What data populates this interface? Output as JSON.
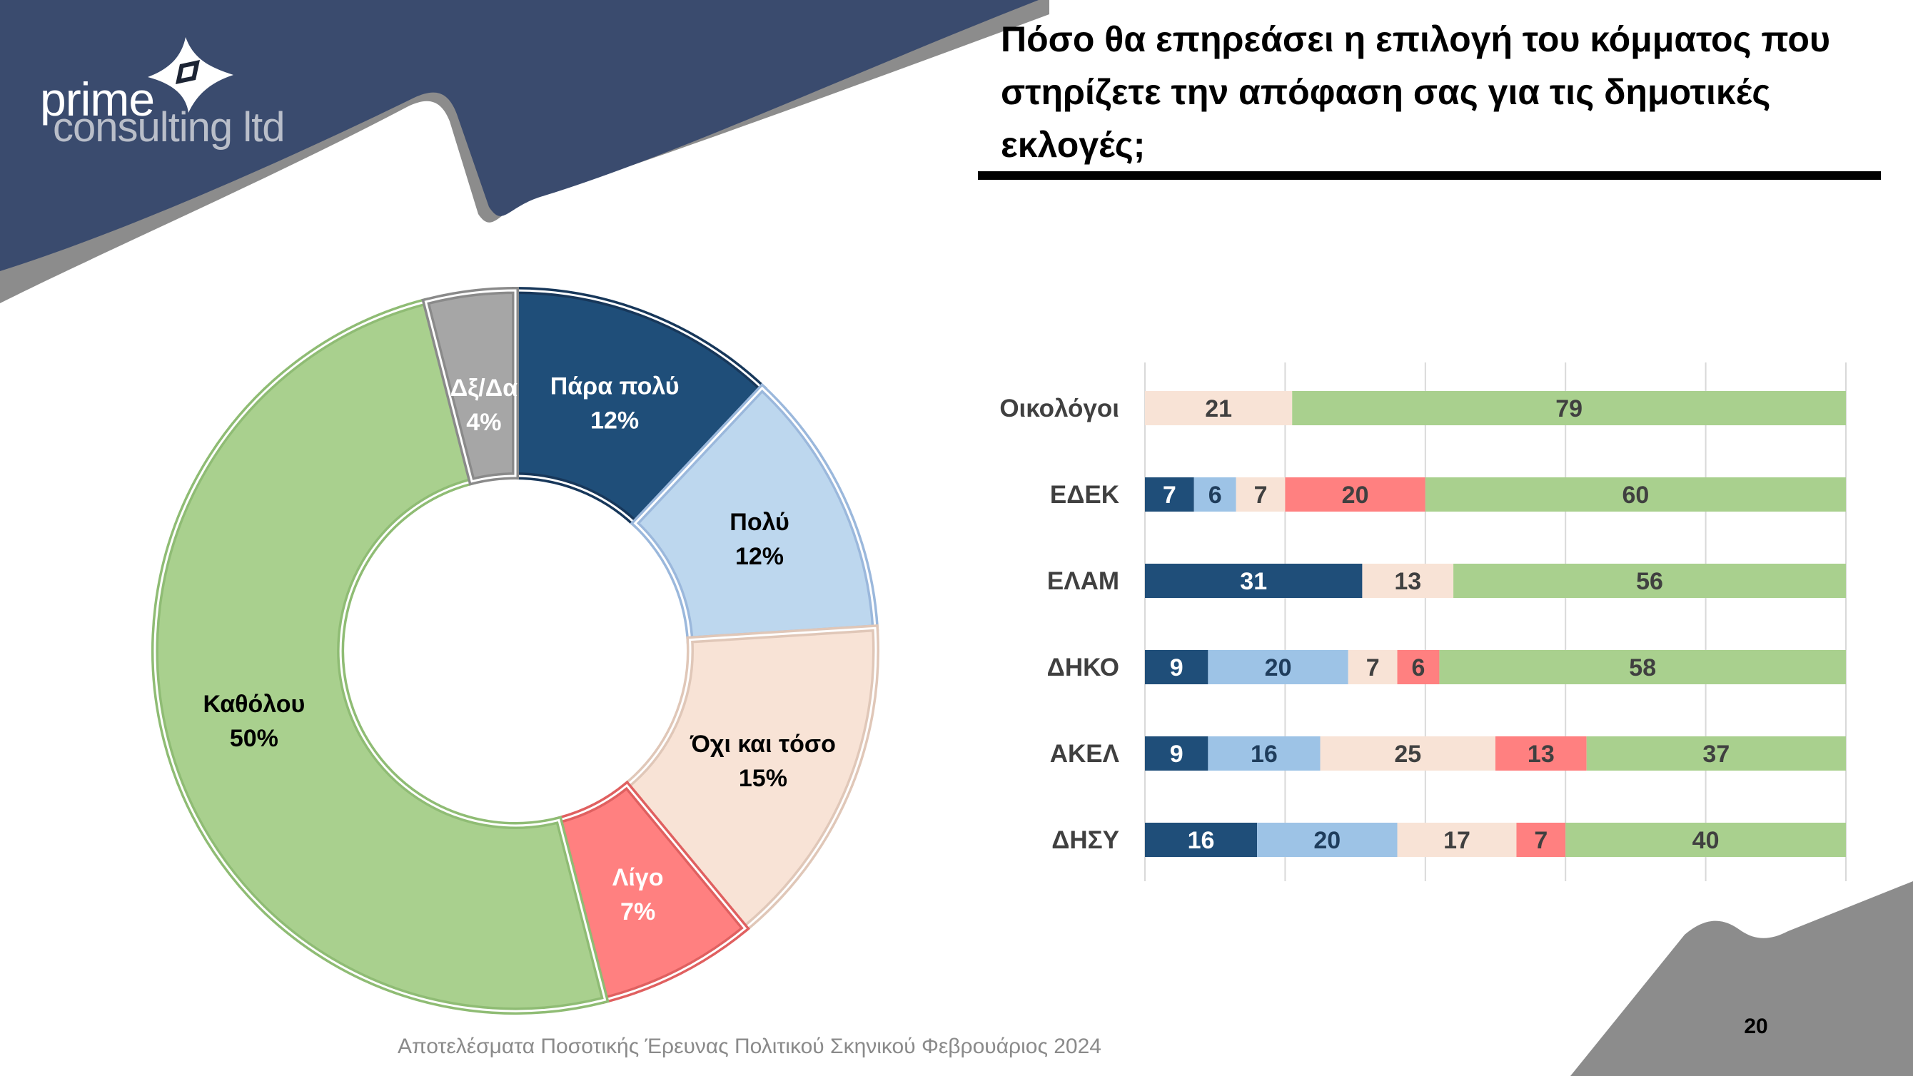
{
  "brand": {
    "name_line1": "prime",
    "name_line2": "consulting ltd"
  },
  "title": "Πόσο θα επηρεάσει η επιλογή του κόμματος που στηρίζετε την απόφαση σας για τις δημοτικές εκλογές;",
  "footer": "Αποτελέσματα Ποσοτικής Έρευνας Πολιτικού Σκηνικού Φεβρουάριος 2024",
  "page_number": "20",
  "colors": {
    "navy": "#3a4b6e",
    "gray": "#8c8c8c",
    "text": "#404040"
  },
  "chart_data": [
    {
      "type": "pie",
      "variant": "donut",
      "slices": [
        {
          "label": "Πάρα πολύ",
          "value": 12,
          "display": "12%",
          "color": "#1f4e79",
          "edge": "#17375a",
          "text_color": "#ffffff"
        },
        {
          "label": "Πολύ",
          "value": 12,
          "display": "12%",
          "color": "#bdd7ee",
          "edge": "#9bb8dc",
          "text_color": "#000000"
        },
        {
          "label": "Όχι και τόσο",
          "value": 15,
          "display": "15%",
          "color": "#f8e3d6",
          "edge": "#e0c7b8",
          "text_color": "#000000"
        },
        {
          "label": "Λίγο",
          "value": 7,
          "display": "7%",
          "color": "#ff8080",
          "edge": "#e06060",
          "text_color": "#ffffff"
        },
        {
          "label": "Καθόλου",
          "value": 50,
          "display": "50%",
          "color": "#a9d08e",
          "edge": "#8fbc74",
          "text_color": "#000000"
        },
        {
          "label": "Δξ/Δα",
          "value": 4,
          "display": "4%",
          "color": "#a6a6a6",
          "edge": "#8a8a8a",
          "text_color": "#ffffff"
        }
      ]
    },
    {
      "type": "bar",
      "orientation": "horizontal",
      "stacked": true,
      "categories": [
        "Οικολόγοι",
        "ΕΔΕΚ",
        "ΕΛΑΜ",
        "ΔΗΚΟ",
        "ΑΚΕΛ",
        "ΔΗΣΥ"
      ],
      "xlim": [
        0,
        100
      ],
      "grid": true,
      "series": [
        {
          "name": "Πάρα πολύ",
          "color": "#1f4e79",
          "text_color": "#ffffff",
          "values": [
            0,
            7,
            31,
            9,
            9,
            16
          ]
        },
        {
          "name": "Πολύ",
          "color": "#9dc3e6",
          "text_color": "#1f3d5c",
          "values": [
            0,
            6,
            0,
            20,
            16,
            20
          ]
        },
        {
          "name": "Όχι και τόσο",
          "color": "#f8e3d6",
          "text_color": "#404040",
          "values": [
            21,
            7,
            13,
            7,
            25,
            17
          ]
        },
        {
          "name": "Λίγο",
          "color": "#ff8080",
          "text_color": "#404040",
          "values": [
            0,
            20,
            0,
            6,
            13,
            7
          ]
        },
        {
          "name": "Καθόλου",
          "color": "#a9d08e",
          "text_color": "#404040",
          "values": [
            79,
            60,
            56,
            58,
            37,
            40
          ]
        }
      ]
    }
  ]
}
